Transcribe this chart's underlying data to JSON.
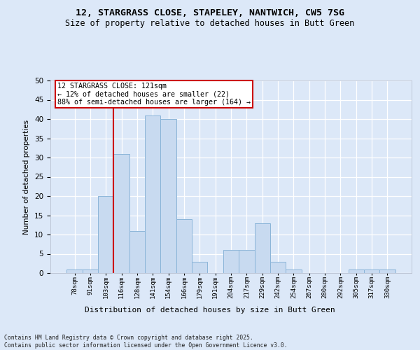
{
  "title_line1": "12, STARGRASS CLOSE, STAPELEY, NANTWICH, CW5 7SG",
  "title_line2": "Size of property relative to detached houses in Butt Green",
  "xlabel": "Distribution of detached houses by size in Butt Green",
  "ylabel": "Number of detached properties",
  "categories": [
    "78sqm",
    "91sqm",
    "103sqm",
    "116sqm",
    "128sqm",
    "141sqm",
    "154sqm",
    "166sqm",
    "179sqm",
    "191sqm",
    "204sqm",
    "217sqm",
    "229sqm",
    "242sqm",
    "254sqm",
    "267sqm",
    "280sqm",
    "292sqm",
    "305sqm",
    "317sqm",
    "330sqm"
  ],
  "values": [
    1,
    1,
    20,
    31,
    11,
    41,
    40,
    14,
    3,
    0,
    6,
    6,
    13,
    3,
    1,
    0,
    0,
    0,
    1,
    1,
    1
  ],
  "bar_color": "#c8daf0",
  "bar_edge_color": "#8ab4d8",
  "red_line_before_index": 3,
  "highlight_line_color": "#cc0000",
  "annotation_text": "12 STARGRASS CLOSE: 121sqm\n← 12% of detached houses are smaller (22)\n88% of semi-detached houses are larger (164) →",
  "annotation_box_color": "#ffffff",
  "annotation_box_edge": "#cc0000",
  "ylim": [
    0,
    50
  ],
  "yticks": [
    0,
    5,
    10,
    15,
    20,
    25,
    30,
    35,
    40,
    45,
    50
  ],
  "background_color": "#dce8f8",
  "grid_color": "#ffffff",
  "footer_line1": "Contains HM Land Registry data © Crown copyright and database right 2025.",
  "footer_line2": "Contains public sector information licensed under the Open Government Licence v3.0."
}
